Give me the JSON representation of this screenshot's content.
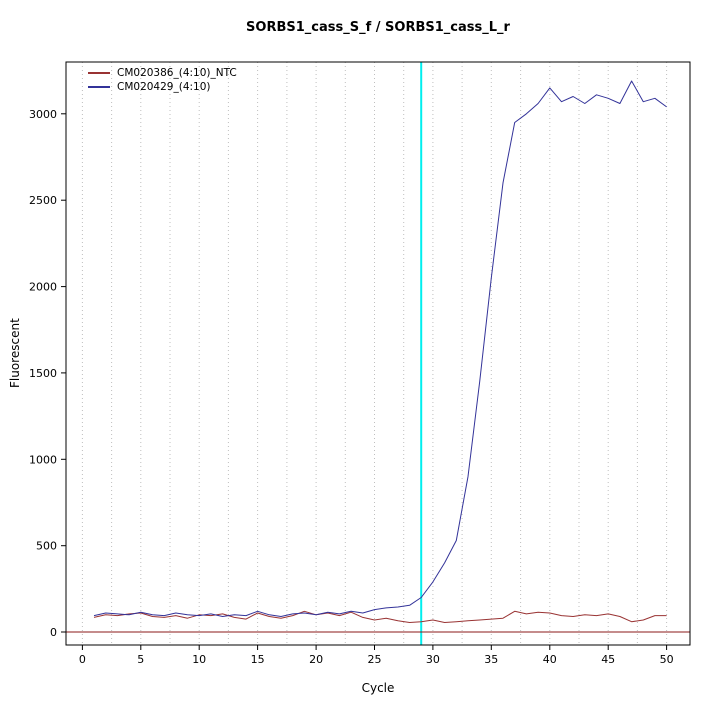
{
  "chart_data": {
    "type": "line",
    "title": "SORBS1_cass_S_f / SORBS1_cass_L_r",
    "xlabel": "Cycle",
    "ylabel": "Fluorescent",
    "xlim": [
      -1.4,
      52
    ],
    "ylim": [
      -75,
      3300
    ],
    "xticks": [
      0,
      5,
      10,
      15,
      20,
      25,
      30,
      35,
      40,
      45,
      50
    ],
    "yticks": [
      0,
      500,
      1000,
      1500,
      2000,
      2500,
      3000
    ],
    "grid": {
      "vertical_step": 2.5,
      "style": "dotted",
      "color": "#bfbfbf"
    },
    "threshold_line_y": 0,
    "vertical_marker_x": 29,
    "legend_position": "top-left",
    "colors": {
      "threshold": "#8b1a1a",
      "marker": "#00eeee",
      "axis": "#000000"
    },
    "x": [
      1,
      2,
      3,
      4,
      5,
      6,
      7,
      8,
      9,
      10,
      11,
      12,
      13,
      14,
      15,
      16,
      17,
      18,
      19,
      20,
      21,
      22,
      23,
      24,
      25,
      26,
      27,
      28,
      29,
      30,
      31,
      32,
      33,
      34,
      35,
      36,
      37,
      38,
      39,
      40,
      41,
      42,
      43,
      44,
      45,
      46,
      47,
      48,
      49,
      50
    ],
    "series": [
      {
        "name": "CM020386_(4:10)_NTC",
        "color": "#993333",
        "values": [
          85,
          100,
          95,
          105,
          110,
          90,
          85,
          95,
          80,
          100,
          95,
          105,
          85,
          75,
          110,
          90,
          80,
          95,
          120,
          100,
          110,
          95,
          115,
          85,
          70,
          80,
          65,
          55,
          60,
          70,
          55,
          60,
          65,
          70,
          75,
          80,
          120,
          105,
          115,
          110,
          95,
          90,
          100,
          95,
          105,
          90,
          60,
          70,
          95,
          95
        ]
      },
      {
        "name": "CM020429_(4:10)",
        "color": "#333399",
        "values": [
          95,
          110,
          105,
          100,
          115,
          100,
          95,
          110,
          100,
          95,
          105,
          90,
          100,
          95,
          120,
          100,
          90,
          105,
          110,
          100,
          115,
          105,
          120,
          110,
          130,
          140,
          145,
          155,
          200,
          290,
          400,
          530,
          900,
          1450,
          2050,
          2600,
          2950,
          3000,
          3060,
          3150,
          3070,
          3100,
          3060,
          3110,
          3090,
          3060,
          3190,
          3070,
          3090,
          3040
        ]
      }
    ]
  }
}
